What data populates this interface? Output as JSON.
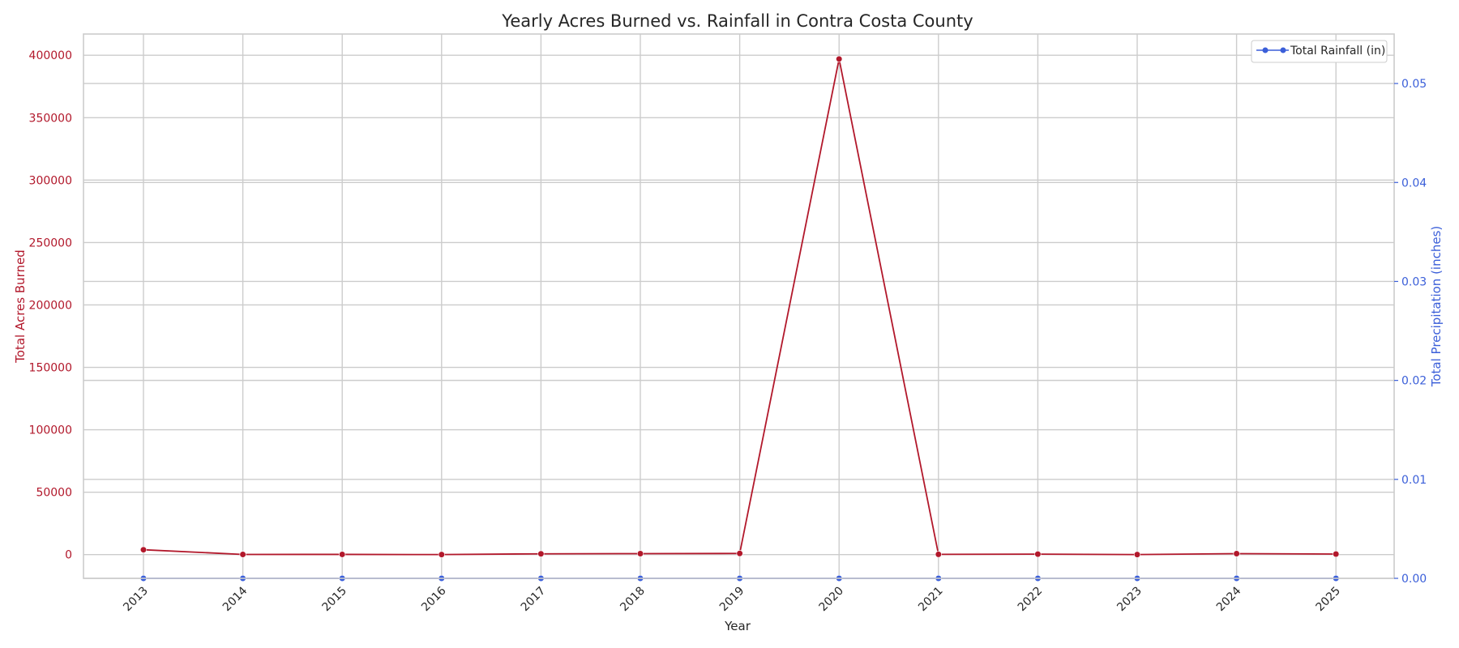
{
  "chart_data": {
    "type": "line",
    "title": "Yearly Acres Burned vs. Rainfall in Contra Costa County",
    "xlabel": "Year",
    "ylabel_left": "Total Acres Burned",
    "ylabel_right": "Total Precipitation (inches)",
    "x": [
      "2013",
      "2014",
      "2015",
      "2016",
      "2017",
      "2018",
      "2019",
      "2020",
      "2021",
      "2022",
      "2023",
      "2024",
      "2025"
    ],
    "series": [
      {
        "key": "acres",
        "axis": "left",
        "color": "#b2182b",
        "values": [
          3900,
          150,
          180,
          40,
          650,
          800,
          950,
          397000,
          200,
          400,
          50,
          800,
          450
        ]
      },
      {
        "key": "rain",
        "axis": "right",
        "name": "Total Rainfall (in)",
        "color": "#3b5fd9",
        "values": [
          0,
          0,
          0,
          0,
          0,
          0,
          0,
          0,
          0,
          0,
          0,
          0,
          0
        ]
      }
    ],
    "yleft_ticks": [
      0,
      50000,
      100000,
      150000,
      200000,
      250000,
      300000,
      350000,
      400000
    ],
    "yleft_lim": [
      -19000,
      417000
    ],
    "yright_ticks": [
      "0.00",
      "0.01",
      "0.02",
      "0.03",
      "0.04",
      "0.05"
    ],
    "yright_lim": [
      0,
      0.055
    ],
    "grid": true,
    "legend_position": "top-right",
    "left_axis_color": "#b2182b",
    "right_axis_color": "#3b5fd9"
  }
}
